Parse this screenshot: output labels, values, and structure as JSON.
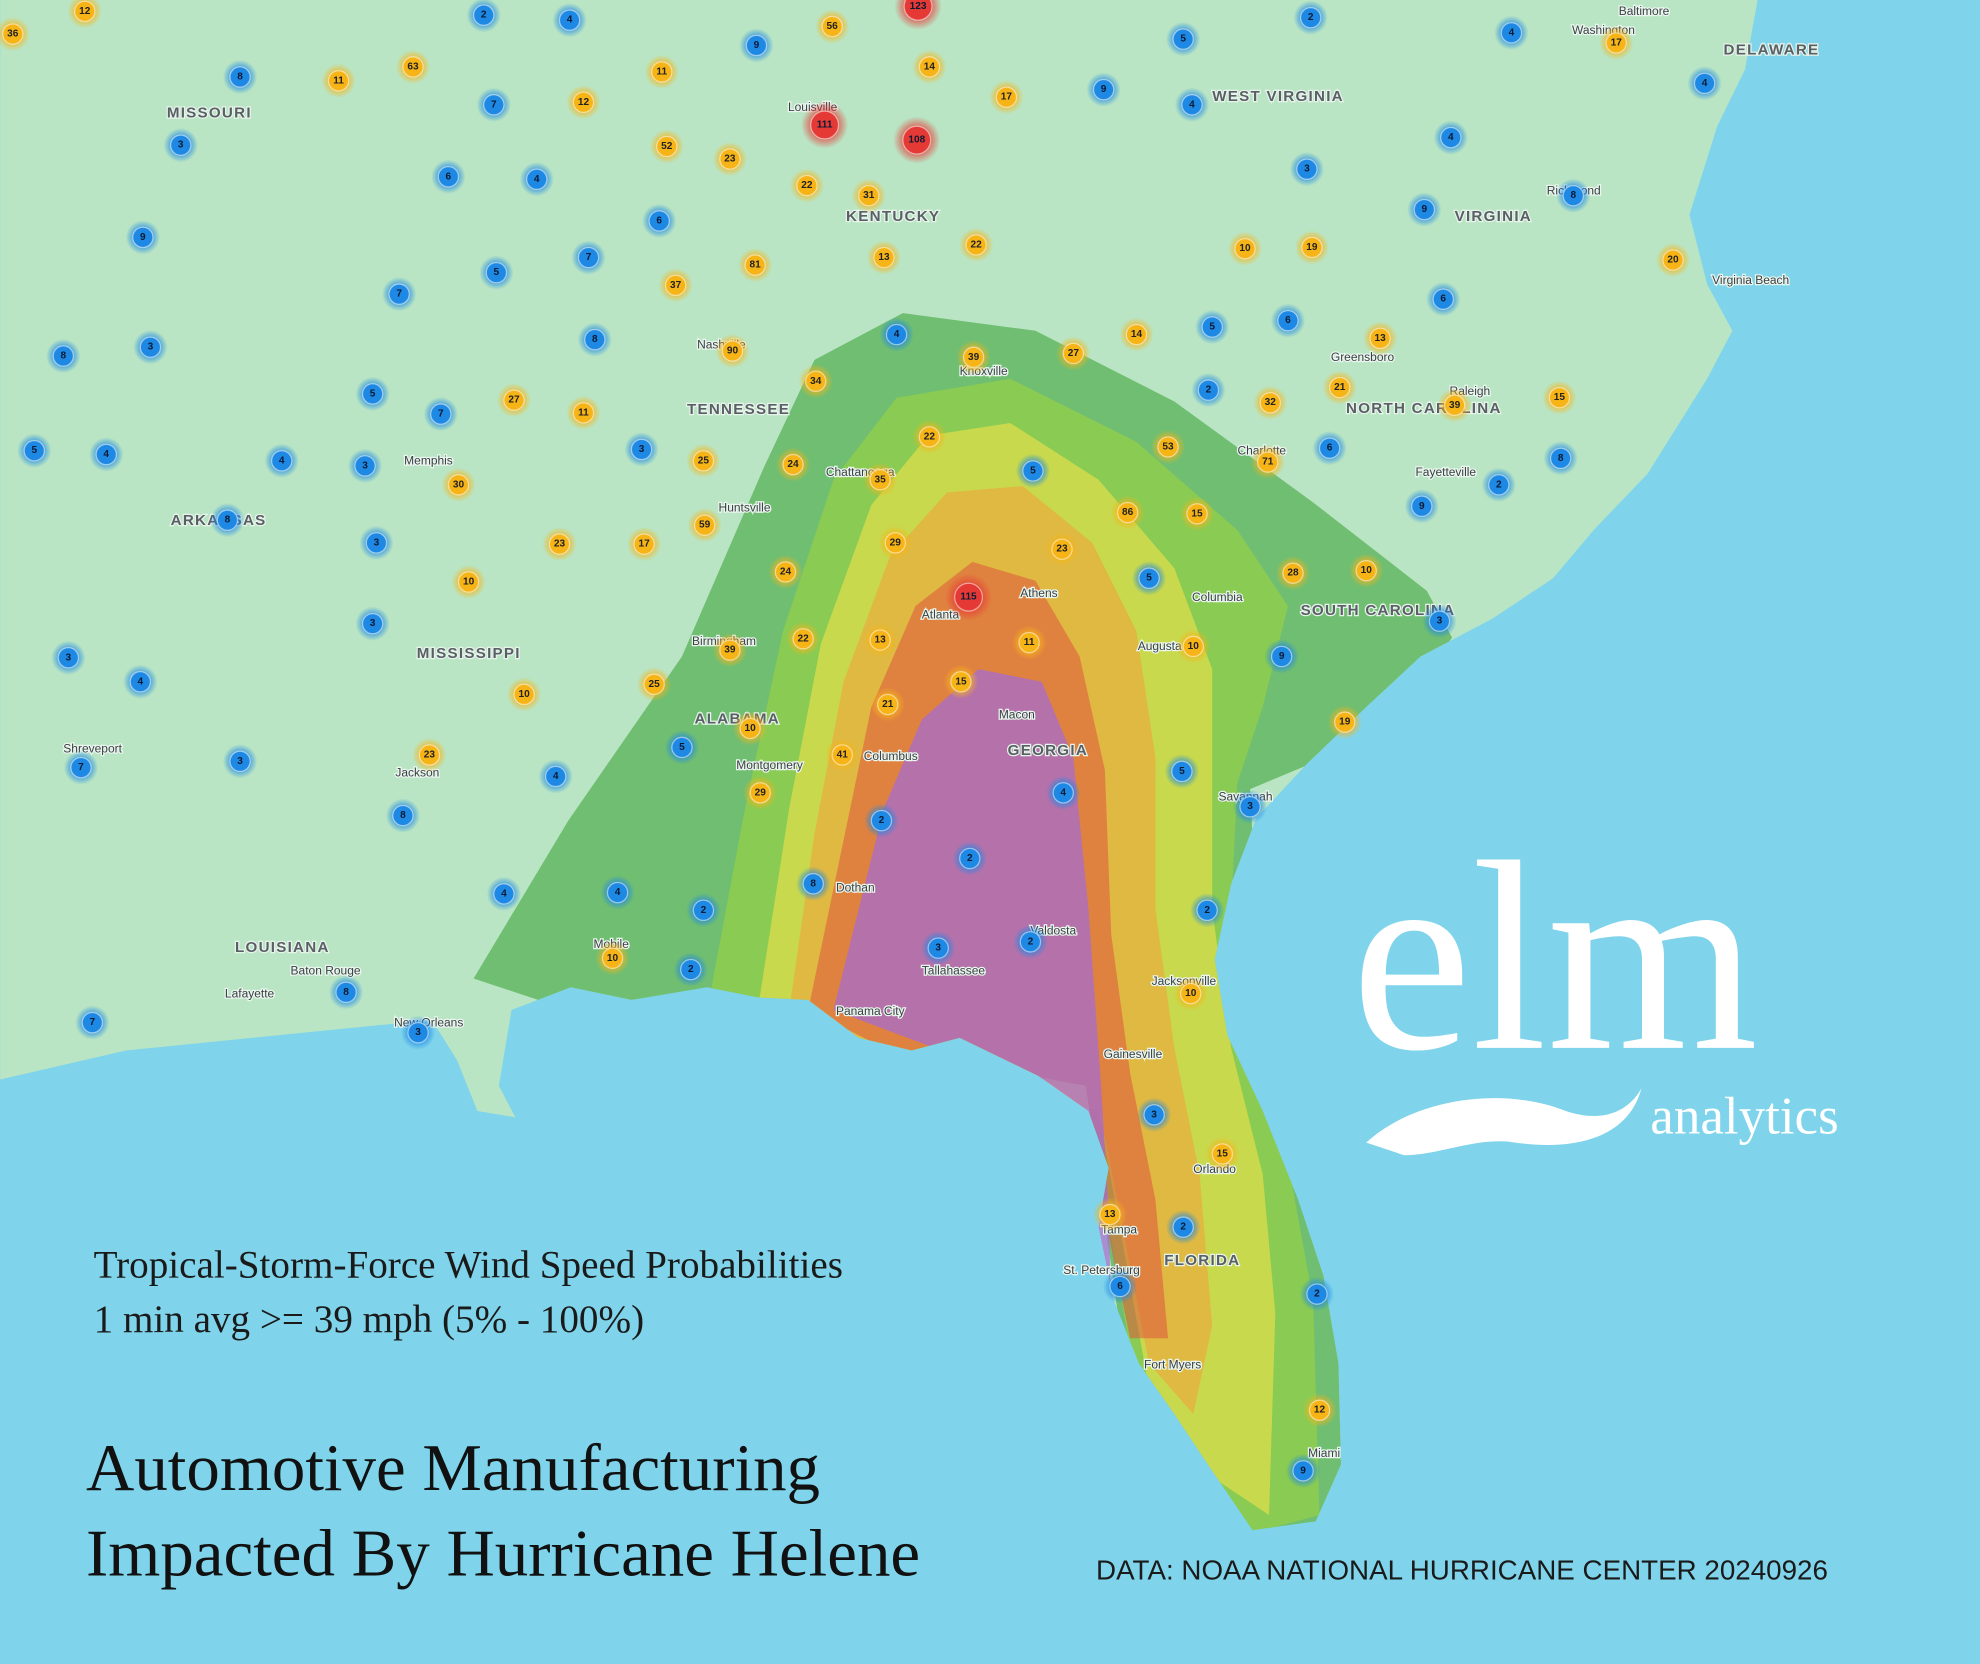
{
  "map": {
    "title_lines": [
      "Automotive Manufacturing",
      "Impacted By Hurricane Helene"
    ],
    "subtitle_lines": [
      "Tropical-Storm-Force Wind Speed Probabilities",
      "1 min avg >= 39 mph (5% - 100%)"
    ],
    "source": "DATA: NOAA NATIONAL HURRICANE CENTER 20240926",
    "logo": {
      "wordmark": "elm",
      "tagline": "analytics"
    },
    "states": [
      "MISSOURI",
      "KENTUCKY",
      "WEST VIRGINIA",
      "VIRGINIA",
      "DELAWARE",
      "TENNESSEE",
      "NORTH CAROLINA",
      "ARKANSAS",
      "MISSISSIPPI",
      "ALABAMA",
      "GEORGIA",
      "SOUTH CAROLINA",
      "LOUISIANA",
      "FLORIDA"
    ],
    "cities": [
      "Louisville",
      "Nashville",
      "Memphis",
      "Atlanta",
      "Birmingham",
      "Montgomery",
      "Jacksonville",
      "Tampa",
      "Orlando",
      "Miami",
      "Charlotte",
      "Raleigh",
      "Knoxville",
      "Chattanooga",
      "Huntsville",
      "Mobile",
      "New Orleans",
      "Baton Rouge",
      "Savannah",
      "Tallahassee",
      "Macon",
      "Columbus",
      "Columbia",
      "Greensboro",
      "Shreveport",
      "Jackson",
      "Richmond",
      "Washington",
      "Baltimore",
      "Virginia Beach",
      "Lafayette",
      "Gainesville",
      "Fayetteville",
      "Athens",
      "Augusta",
      "Panama City",
      "St. Petersburg",
      "Fort Myers",
      "Dothan",
      "Valdosta"
    ],
    "clusters": [
      36,
      12,
      2,
      4,
      9,
      56,
      123,
      2,
      4,
      17,
      5,
      4,
      8,
      11,
      63,
      7,
      12,
      11,
      14,
      17,
      9,
      4,
      111,
      108,
      52,
      23,
      3,
      6,
      4,
      22,
      31,
      4,
      3,
      8,
      9,
      9,
      6,
      7,
      5,
      81,
      13,
      22,
      10,
      19,
      20,
      7,
      37,
      6,
      3,
      8,
      8,
      90,
      4,
      39,
      27,
      14,
      5,
      6,
      13,
      5,
      34,
      27,
      11,
      2,
      32,
      21,
      39,
      15,
      7,
      5,
      4,
      4,
      3,
      3,
      25,
      22,
      53,
      6,
      71,
      8,
      24,
      35,
      5,
      30,
      2,
      8,
      86,
      15,
      9,
      59,
      17,
      23,
      3,
      29,
      23,
      10,
      24,
      5,
      28,
      10,
      115,
      3,
      39,
      22,
      13,
      11,
      10,
      9,
      3,
      3,
      4,
      25,
      15,
      10,
      21,
      10,
      19,
      5,
      41,
      7,
      3,
      23,
      4,
      5,
      4,
      29,
      3,
      8,
      2,
      2,
      4,
      4,
      8,
      2,
      2,
      2,
      3,
      10,
      2,
      8,
      10,
      7,
      3,
      3,
      15,
      13,
      2,
      6,
      2,
      12,
      9
    ]
  }
}
